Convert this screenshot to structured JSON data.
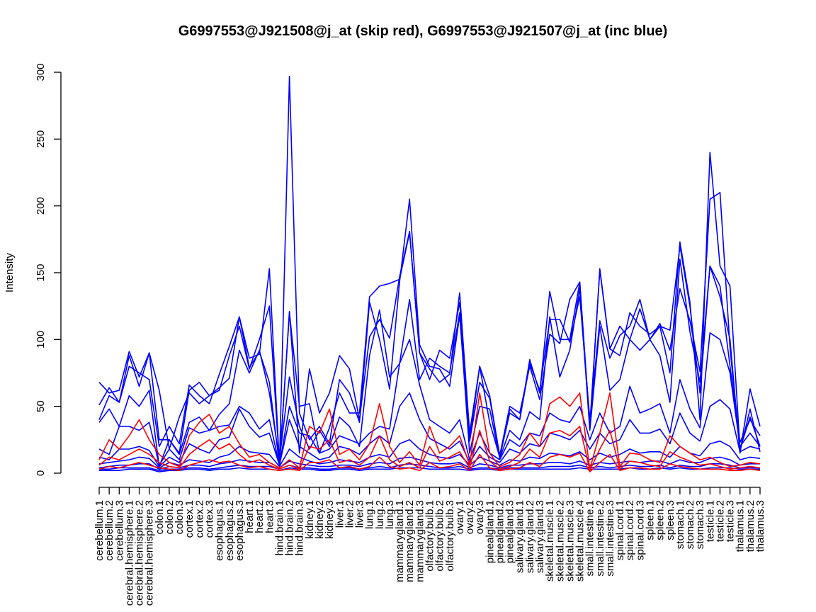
{
  "chart_data": {
    "type": "line",
    "title": "G6997553@J921508@j_at (skip red), G6997553@J921507@j_at (inc blue)",
    "xlabel": "",
    "ylabel": "Intensity",
    "ylim": [
      0,
      300
    ],
    "yticks": [
      0,
      50,
      100,
      150,
      200,
      250,
      300
    ],
    "grid": false,
    "categories": [
      "cerebellum.1",
      "cerebellum.2",
      "cerebellum.3",
      "cerebral.hemisphere.1",
      "cerebral.hemisphere.2",
      "cerebral.hemisphere.3",
      "colon.1",
      "colon.2",
      "colon.3",
      "cortex.1",
      "cortex.2",
      "cortex.3",
      "esophagus.1",
      "esophagus.2",
      "esophagus.3",
      "heart.1",
      "heart.2",
      "heart.3",
      "hind.brain.1",
      "hind.brain.2",
      "hind.brain.3",
      "kidney.1",
      "kidney.2",
      "kidney.3",
      "liver.1",
      "liver.2",
      "liver.3",
      "lung.1",
      "lung.2",
      "lung.3",
      "mammarygland.1",
      "mammarygland.2",
      "mammarygland.3",
      "olfactory.bulb.1",
      "olfactory.bulb.2",
      "olfactory.bulb.3",
      "ovary.1",
      "ovary.2",
      "ovary.3",
      "pinealgland.1",
      "pinealgland.2",
      "pinealgland.3",
      "salivary.gland.1",
      "salivary.gland.2",
      "salivary.gland.3",
      "skeletal.muscle.1",
      "skeletal.muscle.2",
      "skeletal.muscle.3",
      "skeletal.muscle.4",
      "small.intestine.1",
      "small.intestine.2",
      "small.intestine.3",
      "spinal.cord.1",
      "spinal.cord.2",
      "spinal.cord.3",
      "spleen.1",
      "spleen.2",
      "spleen.3",
      "stomach.1",
      "stomach.2",
      "stomach.3",
      "testicle.1",
      "testicle.2",
      "testicle.3",
      "thalamus.1",
      "thalamus.2",
      "thalamus.3"
    ],
    "series": [
      {
        "color": "#0000ff",
        "values": [
          51,
          64,
          53,
          80,
          75,
          70,
          20,
          35,
          22,
          66,
          58,
          52,
          74,
          95,
          117,
          79,
          91,
          68,
          6,
          121,
          15,
          78,
          45,
          60,
          88,
          78,
          40,
          102,
          115,
          101,
          147,
          181,
          90,
          78,
          68,
          74,
          135,
          30,
          80,
          38,
          12,
          45,
          40,
          85,
          60,
          136,
          100,
          100,
          143,
          35,
          152,
          93,
          88,
          120,
          110,
          104,
          110,
          75,
          173,
          128,
          40,
          240,
          155,
          140,
          18,
          42,
          20
        ]
      },
      {
        "color": "#0000ff",
        "values": [
          68,
          60,
          62,
          91,
          72,
          90,
          62,
          18,
          42,
          60,
          52,
          58,
          64,
          71,
          117,
          86,
          89,
          153,
          6,
          297,
          45,
          25,
          35,
          22,
          70,
          60,
          38,
          128,
          100,
          63,
          143,
          205,
          96,
          80,
          78,
          65,
          118,
          25,
          80,
          58,
          13,
          50,
          45,
          80,
          55,
          104,
          97,
          130,
          143,
          33,
          153,
          93,
          110,
          100,
          123,
          100,
          110,
          107,
          170,
          125,
          60,
          155,
          132,
          100,
          15,
          63,
          35
        ]
      },
      {
        "color": "#0000ff",
        "values": [
          40,
          58,
          53,
          88,
          65,
          90,
          25,
          25,
          15,
          62,
          68,
          58,
          62,
          88,
          110,
          78,
          100,
          125,
          7,
          120,
          50,
          52,
          15,
          34,
          60,
          45,
          45,
          132,
          140,
          142,
          145,
          180,
          90,
          70,
          92,
          86,
          128,
          24,
          68,
          56,
          13,
          48,
          40,
          82,
          62,
          115,
          115,
          98,
          132,
          40,
          114,
          86,
          103,
          110,
          130,
          100,
          112,
          92,
          138,
          114,
          76,
          205,
          210,
          94,
          16,
          48,
          16
        ]
      },
      {
        "color": "#0000ff",
        "values": [
          38,
          48,
          35,
          58,
          50,
          62,
          5,
          25,
          14,
          38,
          42,
          32,
          44,
          52,
          92,
          75,
          92,
          60,
          10,
          72,
          35,
          18,
          32,
          20,
          42,
          35,
          20,
          88,
          122,
          72,
          82,
          130,
          70,
          86,
          80,
          75,
          120,
          15,
          50,
          48,
          11,
          32,
          25,
          46,
          40,
          117,
          72,
          92,
          138,
          32,
          110,
          62,
          70,
          100,
          92,
          100,
          88,
          53,
          160,
          106,
          68,
          155,
          140,
          80,
          23,
          40,
          28
        ]
      },
      {
        "color": "#0000ff",
        "values": [
          18,
          14,
          35,
          35,
          32,
          38,
          6,
          18,
          10,
          34,
          30,
          32,
          35,
          36,
          50,
          45,
          33,
          40,
          6,
          50,
          30,
          28,
          15,
          18,
          28,
          25,
          22,
          30,
          35,
          33,
          82,
          100,
          66,
          40,
          35,
          30,
          40,
          10,
          30,
          15,
          10,
          25,
          20,
          30,
          28,
          45,
          40,
          38,
          50,
          25,
          45,
          30,
          35,
          65,
          45,
          48,
          52,
          30,
          70,
          48,
          34,
          105,
          100,
          75,
          20,
          30,
          20
        ]
      },
      {
        "color": "#0000ff",
        "values": [
          12,
          10,
          18,
          18,
          20,
          17,
          5,
          12,
          8,
          22,
          18,
          15,
          25,
          27,
          48,
          35,
          27,
          30,
          6,
          40,
          20,
          15,
          10,
          12,
          20,
          18,
          14,
          22,
          28,
          22,
          50,
          60,
          40,
          26,
          22,
          18,
          24,
          8,
          20,
          12,
          8,
          18,
          15,
          22,
          20,
          30,
          28,
          25,
          32,
          18,
          30,
          22,
          25,
          40,
          30,
          30,
          33,
          22,
          45,
          30,
          24,
          50,
          55,
          48,
          16,
          20,
          18
        ]
      },
      {
        "color": "#0000ff",
        "values": [
          7,
          8,
          9,
          10,
          12,
          11,
          4,
          8,
          6,
          10,
          9,
          8,
          12,
          14,
          20,
          16,
          15,
          14,
          5,
          18,
          12,
          9,
          7,
          8,
          10,
          9,
          8,
          12,
          14,
          12,
          22,
          25,
          18,
          14,
          12,
          11,
          14,
          6,
          12,
          9,
          6,
          10,
          9,
          12,
          11,
          15,
          14,
          13,
          16,
          10,
          15,
          12,
          14,
          18,
          15,
          16,
          16,
          12,
          20,
          15,
          13,
          22,
          24,
          20,
          10,
          12,
          11
        ]
      },
      {
        "color": "#0000ff",
        "values": [
          4,
          5,
          6,
          6,
          7,
          7,
          3,
          5,
          4,
          6,
          6,
          5,
          7,
          8,
          10,
          9,
          8,
          8,
          4,
          9,
          7,
          6,
          5,
          5,
          6,
          6,
          5,
          7,
          8,
          7,
          11,
          12,
          10,
          8,
          7,
          7,
          8,
          4,
          7,
          6,
          4,
          6,
          6,
          7,
          7,
          8,
          8,
          7,
          9,
          6,
          8,
          7,
          8,
          9,
          8,
          9,
          9,
          7,
          10,
          8,
          8,
          11,
          12,
          10,
          6,
          7,
          7
        ]
      },
      {
        "color": "#0000ff",
        "values": [
          3,
          3,
          4,
          4,
          4,
          4,
          2,
          3,
          3,
          4,
          4,
          3,
          4,
          5,
          6,
          5,
          5,
          5,
          3,
          6,
          4,
          4,
          3,
          3,
          4,
          4,
          3,
          4,
          5,
          4,
          6,
          7,
          6,
          5,
          4,
          4,
          5,
          3,
          4,
          4,
          3,
          4,
          4,
          4,
          4,
          5,
          5,
          5,
          6,
          4,
          5,
          4,
          5,
          6,
          5,
          5,
          6,
          4,
          6,
          5,
          5,
          7,
          7,
          6,
          4,
          4,
          4
        ]
      },
      {
        "color": "#0000ff",
        "values": [
          2,
          2,
          2,
          3,
          3,
          3,
          1,
          2,
          2,
          3,
          3,
          2,
          3,
          3,
          4,
          3,
          3,
          3,
          2,
          4,
          3,
          3,
          2,
          2,
          3,
          3,
          2,
          3,
          3,
          3,
          4,
          4,
          4,
          3,
          3,
          3,
          3,
          2,
          3,
          3,
          2,
          3,
          3,
          3,
          3,
          3,
          3,
          3,
          4,
          3,
          3,
          3,
          3,
          4,
          3,
          3,
          4,
          3,
          4,
          3,
          3,
          4,
          4,
          4,
          3,
          3,
          3
        ]
      },
      {
        "color": "#ff0000",
        "values": [
          10,
          25,
          18,
          28,
          40,
          25,
          14,
          8,
          5,
          28,
          38,
          44,
          30,
          35,
          22,
          12,
          14,
          8,
          4,
          10,
          4,
          35,
          30,
          48,
          14,
          18,
          10,
          22,
          52,
          20,
          8,
          16,
          6,
          35,
          15,
          20,
          28,
          6,
          60,
          15,
          5,
          8,
          14,
          30,
          20,
          52,
          57,
          50,
          60,
          3,
          30,
          60,
          5,
          15,
          14,
          10,
          8,
          28,
          20,
          15,
          10,
          12,
          8,
          5,
          6,
          8,
          7
        ]
      },
      {
        "color": "#ff0000",
        "values": [
          6,
          12,
          10,
          14,
          18,
          14,
          8,
          5,
          4,
          14,
          20,
          25,
          18,
          22,
          14,
          8,
          10,
          6,
          3,
          6,
          3,
          20,
          18,
          25,
          8,
          10,
          6,
          12,
          28,
          10,
          5,
          8,
          4,
          20,
          9,
          12,
          16,
          4,
          32,
          9,
          3,
          5,
          8,
          18,
          12,
          30,
          32,
          28,
          35,
          2,
          18,
          32,
          3,
          9,
          8,
          6,
          5,
          16,
          12,
          9,
          6,
          7,
          5,
          3,
          4,
          5,
          4
        ]
      },
      {
        "color": "#ff0000",
        "values": [
          3,
          5,
          4,
          6,
          8,
          6,
          4,
          3,
          2,
          6,
          8,
          10,
          8,
          9,
          6,
          4,
          5,
          3,
          2,
          3,
          2,
          8,
          8,
          10,
          4,
          5,
          3,
          5,
          12,
          5,
          3,
          4,
          2,
          8,
          4,
          5,
          7,
          2,
          14,
          4,
          2,
          3,
          4,
          8,
          5,
          12,
          14,
          12,
          15,
          1,
          8,
          14,
          2,
          4,
          4,
          3,
          3,
          7,
          5,
          4,
          3,
          3,
          3,
          2,
          2,
          3,
          2
        ]
      }
    ]
  }
}
